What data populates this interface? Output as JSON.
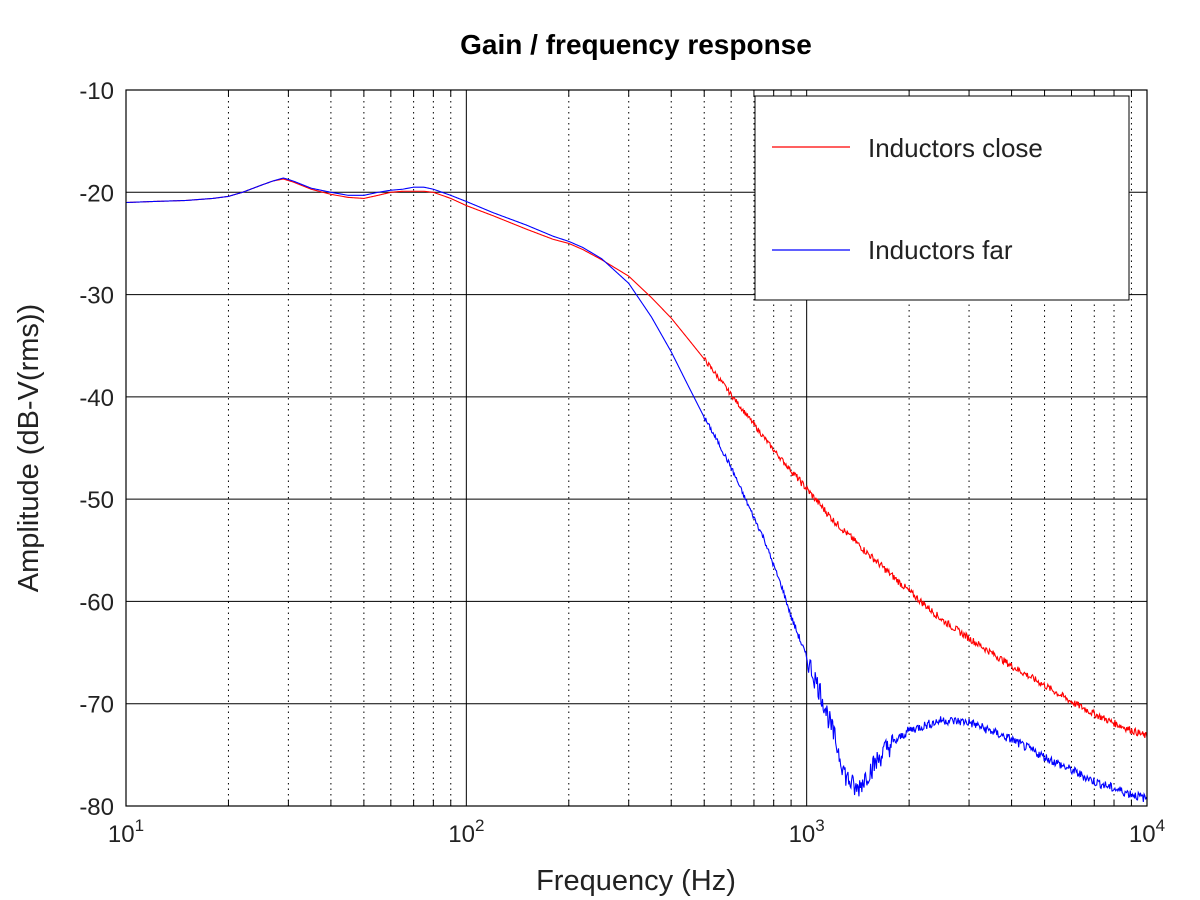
{
  "chart_data": {
    "type": "line",
    "title": "Gain / frequency response",
    "xlabel": "Frequency (Hz)",
    "ylabel": "Amplitude (dB-V(rms))",
    "xscale": "log",
    "xlim": [
      10,
      10000
    ],
    "ylim": [
      -80,
      -10
    ],
    "x_ticks": [
      {
        "base": "10",
        "exp": "1",
        "value": 10
      },
      {
        "base": "10",
        "exp": "2",
        "value": 100
      },
      {
        "base": "10",
        "exp": "3",
        "value": 1000
      },
      {
        "base": "10",
        "exp": "4",
        "value": 10000
      }
    ],
    "y_ticks": [
      "-10",
      "-20",
      "-30",
      "-40",
      "-50",
      "-60",
      "-70",
      "-80"
    ],
    "y_tick_values": [
      -10,
      -20,
      -30,
      -40,
      -50,
      -60,
      -70,
      -80
    ],
    "grid": true,
    "legend_position": "top-right",
    "series": [
      {
        "name": "Inductors close",
        "color": "#ff0000",
        "x": [
          10,
          12,
          15,
          18,
          20,
          22,
          25,
          27,
          29,
          31,
          35,
          40,
          45,
          50,
          55,
          60,
          65,
          70,
          75,
          80,
          90,
          100,
          120,
          150,
          180,
          200,
          220,
          250,
          300,
          350,
          400,
          450,
          500,
          550,
          600,
          650,
          700,
          800,
          900,
          1000,
          1200,
          1500,
          2000,
          2500,
          3000,
          4000,
          5000,
          6000,
          7000,
          8000,
          10000
        ],
        "y": [
          -21.0,
          -20.9,
          -20.8,
          -20.6,
          -20.4,
          -20.0,
          -19.3,
          -18.9,
          -18.7,
          -19.0,
          -19.7,
          -20.2,
          -20.5,
          -20.6,
          -20.3,
          -20.0,
          -19.9,
          -19.9,
          -19.9,
          -20.0,
          -20.6,
          -21.3,
          -22.3,
          -23.6,
          -24.6,
          -25.0,
          -25.6,
          -26.6,
          -28.2,
          -30.3,
          -32.3,
          -34.4,
          -36.3,
          -38.1,
          -39.8,
          -41.3,
          -42.7,
          -45.2,
          -47.2,
          -49.0,
          -52.1,
          -55.2,
          -59.0,
          -61.8,
          -63.6,
          -66.3,
          -68.2,
          -69.8,
          -71.0,
          -71.9,
          -73.2
        ]
      },
      {
        "name": "Inductors far",
        "color": "#0000ff",
        "x": [
          10,
          12,
          15,
          18,
          20,
          22,
          25,
          27,
          29,
          31,
          35,
          40,
          45,
          50,
          55,
          60,
          65,
          70,
          75,
          80,
          90,
          100,
          120,
          150,
          180,
          200,
          220,
          250,
          300,
          350,
          400,
          450,
          500,
          550,
          600,
          650,
          700,
          750,
          800,
          850,
          900,
          950,
          1000,
          1100,
          1200,
          1300,
          1400,
          1500,
          1700,
          2000,
          2500,
          3000,
          4000,
          5000,
          6000,
          7000,
          8000,
          10000
        ],
        "y": [
          -21.0,
          -20.9,
          -20.8,
          -20.6,
          -20.4,
          -20.0,
          -19.3,
          -18.9,
          -18.6,
          -18.9,
          -19.6,
          -20.0,
          -20.3,
          -20.3,
          -20.0,
          -19.8,
          -19.7,
          -19.5,
          -19.5,
          -19.7,
          -20.3,
          -20.9,
          -22.0,
          -23.2,
          -24.3,
          -24.8,
          -25.4,
          -26.5,
          -28.9,
          -32.2,
          -35.6,
          -39.0,
          -42.0,
          -44.5,
          -46.9,
          -49.5,
          -51.8,
          -53.9,
          -56.5,
          -58.8,
          -61.5,
          -63.5,
          -65.5,
          -69.0,
          -73.0,
          -77.0,
          -78.5,
          -77.0,
          -74.5,
          -72.6,
          -71.6,
          -71.8,
          -73.5,
          -75.2,
          -76.5,
          -77.6,
          -78.3,
          -79.3
        ]
      }
    ]
  }
}
